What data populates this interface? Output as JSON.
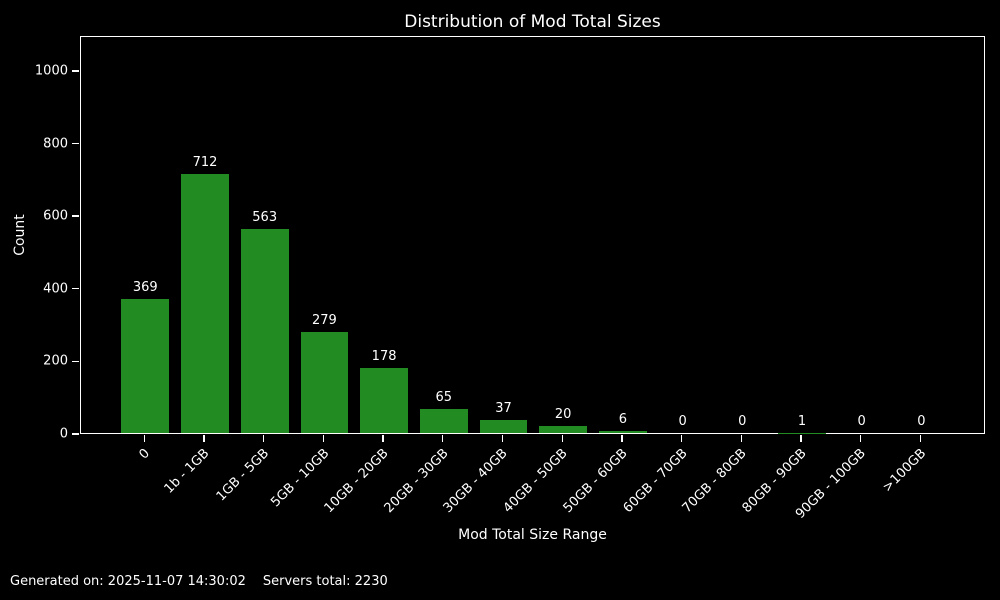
{
  "figure": {
    "title": "Distribution of Mod Total Sizes",
    "footer": {
      "generated": "Generated on: 2025-11-07 14:30:02",
      "servers_total": "Servers total: 2230"
    },
    "colors": {
      "background": "#000000",
      "bar": "#228B22",
      "text": "#ffffff",
      "spine": "#ffffff"
    }
  },
  "chart_data": {
    "type": "bar",
    "title": "Distribution of Mod Total Sizes",
    "xlabel": "Mod Total Size Range",
    "ylabel": "Count",
    "categories": [
      "0",
      "1b - 1GB",
      "1GB - 5GB",
      "5GB - 10GB",
      "10GB - 20GB",
      "20GB - 30GB",
      "30GB - 40GB",
      "40GB - 50GB",
      "50GB - 60GB",
      "60GB - 70GB",
      "70GB - 80GB",
      "80GB - 90GB",
      "90GB - 100GB",
      ">100GB"
    ],
    "values": [
      369,
      712,
      563,
      279,
      178,
      65,
      37,
      20,
      6,
      0,
      0,
      1,
      0,
      0
    ],
    "value_labels_shown": true,
    "yticks": [
      0,
      200,
      400,
      600,
      800,
      1000
    ],
    "ylim": [
      0,
      1096
    ],
    "xtick_rotation": 45,
    "bar_color": "#228B22",
    "grid": false,
    "legend": null
  }
}
